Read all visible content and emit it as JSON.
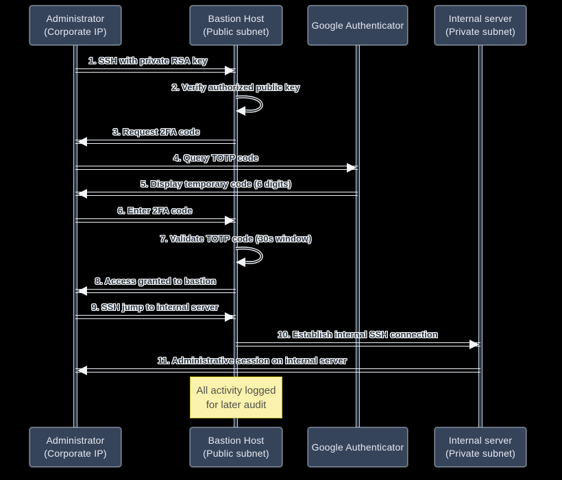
{
  "diagram_type": "sequence",
  "participants": [
    {
      "id": "administrator",
      "line1": "Administrator",
      "line2": "(Corporate IP)"
    },
    {
      "id": "bastion",
      "line1": "Bastion Host",
      "line2": "(Public subnet)"
    },
    {
      "id": "google_auth",
      "line1": "Google Authenticator",
      "line2": ""
    },
    {
      "id": "internal",
      "line1": "Internal server",
      "line2": "(Private subnet)"
    }
  ],
  "messages": [
    {
      "order": 1,
      "label": "1. SSH with private RSA key",
      "from": "administrator",
      "to": "bastion",
      "type": "solid-arrow"
    },
    {
      "order": 2,
      "label": "2. Verify authorized public key",
      "from": "bastion",
      "to": "bastion",
      "type": "self-loop"
    },
    {
      "order": 3,
      "label": "3. Request 2FA code",
      "from": "bastion",
      "to": "administrator",
      "type": "solid-arrow"
    },
    {
      "order": 4,
      "label": "4. Query TOTP code",
      "from": "administrator",
      "to": "google_auth",
      "type": "solid-arrow"
    },
    {
      "order": 5,
      "label": "5. Display temporary code (6 digits)",
      "from": "google_auth",
      "to": "administrator",
      "type": "solid-arrow"
    },
    {
      "order": 6,
      "label": "6. Enter 2FA code",
      "from": "administrator",
      "to": "bastion",
      "type": "solid-arrow"
    },
    {
      "order": 7,
      "label": "7. Validate TOTP code (30s window)",
      "from": "bastion",
      "to": "bastion",
      "type": "self-loop"
    },
    {
      "order": 8,
      "label": "8. Access granted to bastion",
      "from": "bastion",
      "to": "administrator",
      "type": "solid-arrow"
    },
    {
      "order": 9,
      "label": "9. SSH jump to internal server",
      "from": "administrator",
      "to": "bastion",
      "type": "solid-arrow"
    },
    {
      "order": 10,
      "label": "10. Establish internal SSH connection",
      "from": "bastion",
      "to": "internal",
      "type": "solid-arrow"
    },
    {
      "order": 11,
      "label": "11. Administrative session on internal server",
      "from": "internal",
      "to": "administrator",
      "type": "solid-arrow"
    }
  ],
  "note": {
    "over": "bastion",
    "line1": "All activity logged",
    "line2": "for later audit"
  },
  "colors": {
    "background": "#000000",
    "participant_fill": "#36445A",
    "participant_border": "#7E90A6",
    "participant_text": "#E6EAF0",
    "lifeline": "#C6D2DF",
    "message_line": "#F2F6FA",
    "note_fill": "#FAF2AD",
    "note_border": "#C4B93C",
    "note_text": "#52524A"
  }
}
